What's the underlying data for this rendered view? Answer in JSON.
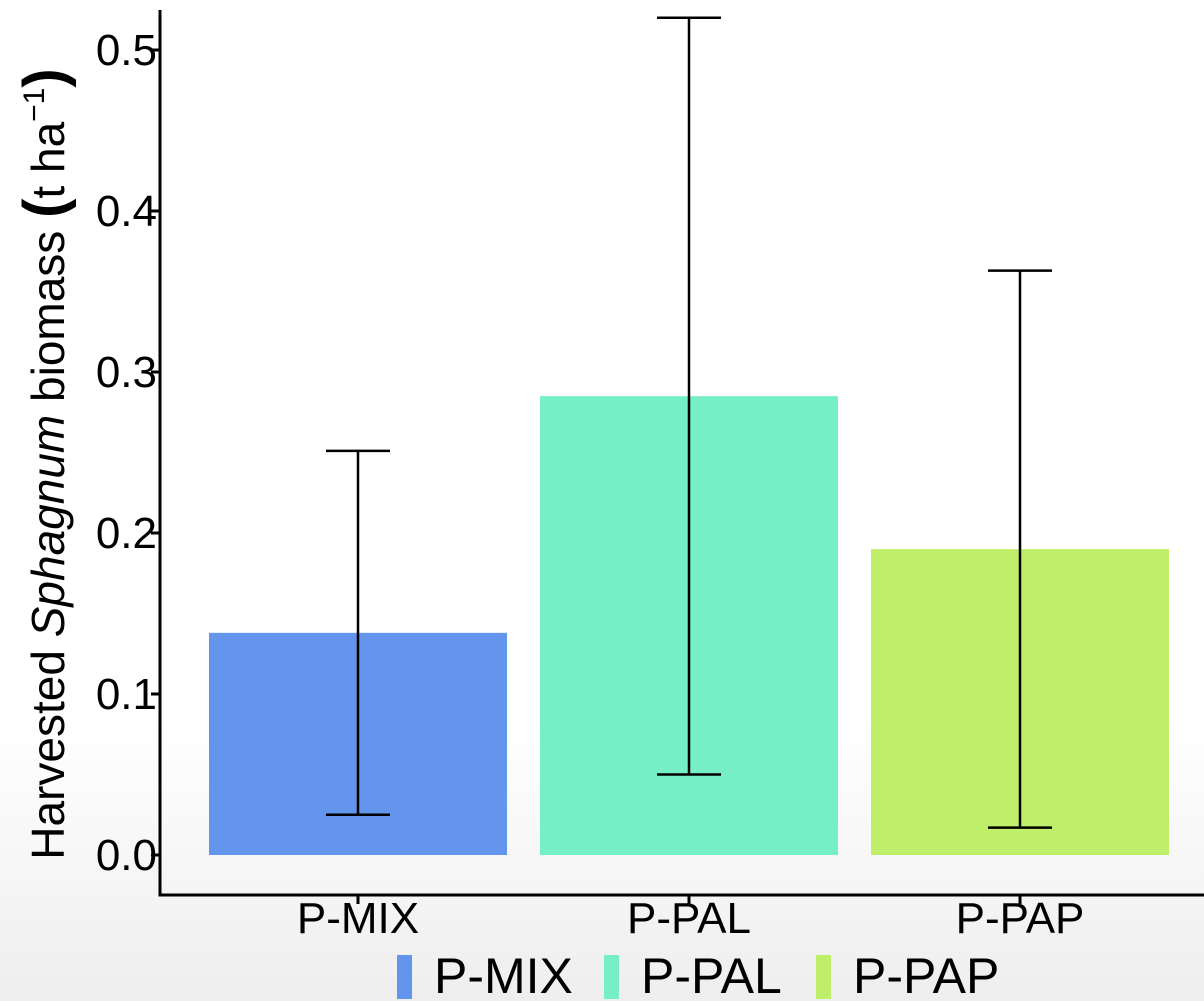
{
  "chart_data": {
    "type": "bar",
    "categories": [
      "P-MIX",
      "P-PAL",
      "P-PAP"
    ],
    "values": [
      0.138,
      0.285,
      0.19
    ],
    "error_low": [
      0.025,
      0.05,
      0.017
    ],
    "error_high": [
      0.251,
      0.52,
      0.363
    ],
    "colors": [
      "#6495ED",
      "#76EEC6",
      "#BFEE6A"
    ],
    "ylim": [
      0,
      0.52
    ],
    "yticks": [
      "0.0",
      "0.1",
      "0.2",
      "0.3",
      "0.4",
      "0.5"
    ],
    "ylabel": {
      "prefix": "Harvested ",
      "italic": "Sphagnum",
      "middle": " biomass ",
      "unit_open": "(",
      "unit": "t ha",
      "unit_exp": "−1",
      "unit_close": ")"
    },
    "xlabel": "",
    "legend": {
      "position": "bottom",
      "entries": [
        "P-MIX",
        "P-PAL",
        "P-PAP"
      ]
    },
    "grid": false
  }
}
